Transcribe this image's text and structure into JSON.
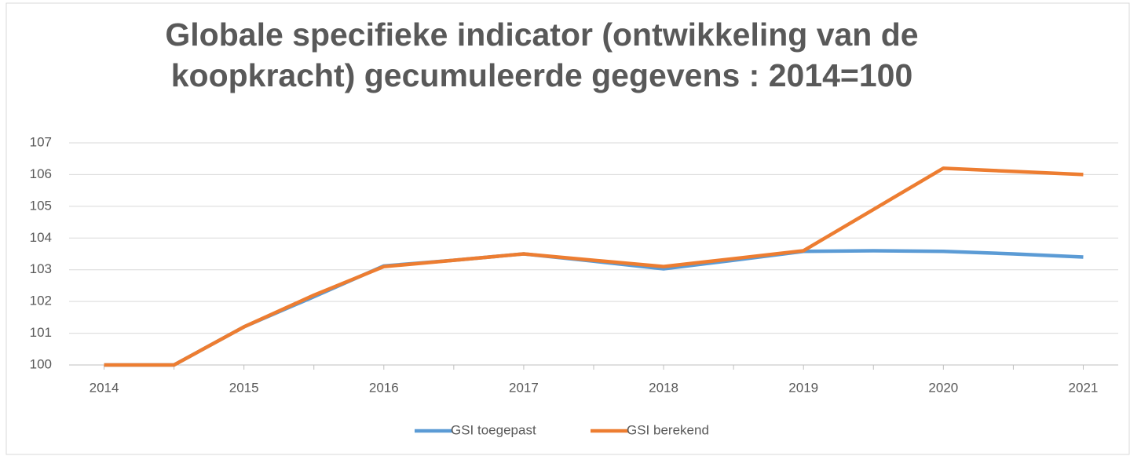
{
  "chart_data": {
    "type": "line",
    "title": "Globale specifieke indicator (ontwikkeling van de koopkracht) gecumuleerde gegevens : 2014=100",
    "categories": [
      "2014",
      null,
      "2015",
      null,
      "2016",
      null,
      "2017",
      null,
      "2018",
      null,
      "2019",
      null,
      "2020",
      null,
      "2021"
    ],
    "series": [
      {
        "name": "GSI toegepast",
        "color": "#5b9bd5",
        "values": [
          100,
          100,
          101.2,
          102.15,
          103.12,
          103.3,
          103.5,
          103.27,
          103.03,
          103.3,
          103.58,
          103.6,
          103.58,
          103.5,
          103.4
        ]
      },
      {
        "name": "GSI berekend",
        "color": "#ed7d31",
        "values": [
          100,
          100,
          101.2,
          102.2,
          103.1,
          103.3,
          103.5,
          103.3,
          103.1,
          103.35,
          103.6,
          104.9,
          106.2,
          106.1,
          106.0
        ]
      }
    ],
    "ylim": [
      100,
      107
    ],
    "yticks": [
      100,
      101,
      102,
      103,
      104,
      105,
      106,
      107
    ],
    "grid": true,
    "legend": "bottom"
  }
}
